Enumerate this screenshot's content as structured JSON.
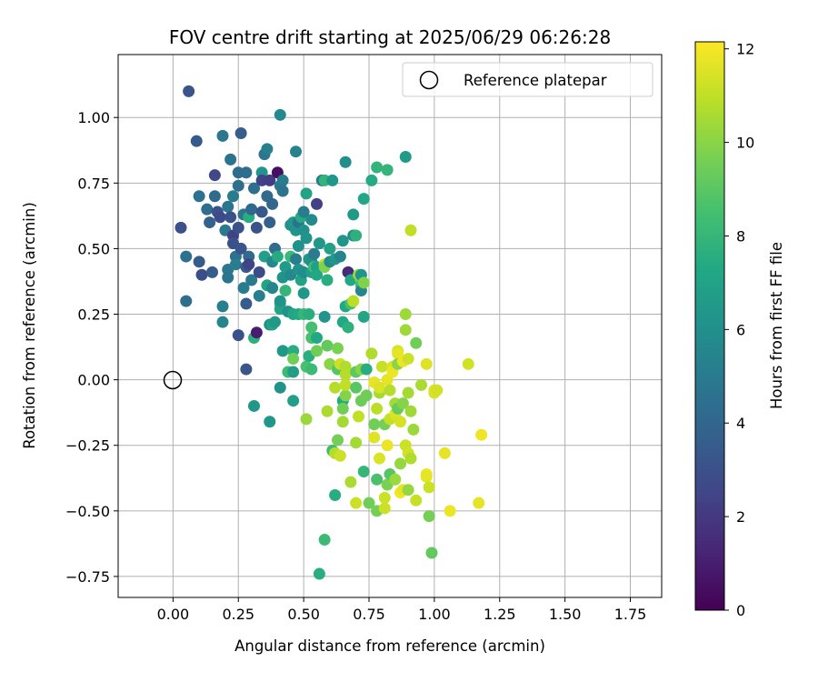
{
  "chart_data": {
    "type": "scatter",
    "title": "FOV centre drift starting at 2025/06/29 06:26:28",
    "xlabel": "Angular distance from reference (arcmin)",
    "ylabel": "Rotation from reference (arcmin)",
    "xlim": [
      -0.21,
      1.87
    ],
    "ylim": [
      -0.83,
      1.24
    ],
    "xticks": [
      0.0,
      0.25,
      0.5,
      0.75,
      1.0,
      1.25,
      1.5,
      1.75
    ],
    "xtick_labels": [
      "0.00",
      "0.25",
      "0.50",
      "0.75",
      "1.00",
      "1.25",
      "1.50",
      "1.75"
    ],
    "yticks": [
      -0.75,
      -0.5,
      -0.25,
      0.0,
      0.25,
      0.5,
      0.75,
      1.0
    ],
    "ytick_labels": [
      "−0.75",
      "−0.50",
      "−0.25",
      "0.00",
      "0.25",
      "0.50",
      "0.75",
      "1.00"
    ],
    "grid": true,
    "colorbar": {
      "label": "Hours from first FF file",
      "range": [
        0,
        12.15
      ],
      "ticks": [
        0,
        2,
        4,
        6,
        8,
        10,
        12
      ],
      "tick_labels": [
        "0",
        "2",
        "4",
        "6",
        "8",
        "10",
        "12"
      ],
      "colormap": "viridis"
    },
    "legend": {
      "position": "top-right",
      "entries": [
        {
          "label": "Reference platepar",
          "marker": "open-circle"
        }
      ]
    },
    "reference_point": {
      "x": 0.0,
      "y": 0.0
    },
    "points": [
      [
        0.06,
        1.1,
        3.2
      ],
      [
        0.03,
        0.58,
        3.0
      ],
      [
        0.05,
        0.47,
        4.5
      ],
      [
        0.05,
        0.3,
        4.4
      ],
      [
        0.09,
        0.91,
        3.4
      ],
      [
        0.1,
        0.7,
        4.5
      ],
      [
        0.1,
        0.45,
        3.5
      ],
      [
        0.11,
        0.4,
        2.9
      ],
      [
        0.13,
        0.65,
        4.3
      ],
      [
        0.14,
        0.6,
        3.8
      ],
      [
        0.15,
        0.41,
        3.5
      ],
      [
        0.16,
        0.78,
        2.6
      ],
      [
        0.16,
        0.7,
        4.2
      ],
      [
        0.17,
        0.64,
        3.1
      ],
      [
        0.18,
        0.62,
        2.8
      ],
      [
        0.19,
        0.28,
        5.2
      ],
      [
        0.19,
        0.22,
        5.5
      ],
      [
        0.19,
        0.93,
        4.8
      ],
      [
        0.2,
        0.57,
        4.9
      ],
      [
        0.21,
        0.42,
        4.8
      ],
      [
        0.21,
        0.39,
        4.7
      ],
      [
        0.21,
        0.66,
        4.7
      ],
      [
        0.22,
        0.84,
        4.6
      ],
      [
        0.22,
        0.62,
        3.0
      ],
      [
        0.23,
        0.7,
        5.0
      ],
      [
        0.23,
        0.55,
        2.4
      ],
      [
        0.23,
        0.52,
        3.0
      ],
      [
        0.24,
        0.47,
        4.5
      ],
      [
        0.24,
        0.44,
        5.1
      ],
      [
        0.25,
        0.79,
        4.3
      ],
      [
        0.25,
        0.74,
        4.4
      ],
      [
        0.25,
        0.58,
        3.0
      ],
      [
        0.25,
        0.17,
        3.0
      ],
      [
        0.26,
        0.94,
        3.6
      ],
      [
        0.26,
        0.5,
        3.2
      ],
      [
        0.27,
        0.63,
        4.7
      ],
      [
        0.27,
        0.35,
        5.0
      ],
      [
        0.28,
        0.79,
        4.3
      ],
      [
        0.28,
        0.43,
        3.4
      ],
      [
        0.28,
        0.29,
        3.5
      ],
      [
        0.29,
        0.47,
        4.2
      ],
      [
        0.29,
        0.44,
        2.4
      ],
      [
        0.28,
        0.04,
        3.2
      ],
      [
        0.29,
        0.62,
        7.5
      ],
      [
        0.3,
        0.65,
        4.1
      ],
      [
        0.3,
        0.38,
        4.9
      ],
      [
        0.31,
        0.73,
        4.4
      ],
      [
        0.31,
        0.16,
        7.7
      ],
      [
        0.31,
        -0.1,
        6.4
      ],
      [
        0.32,
        0.18,
        1.0
      ],
      [
        0.32,
        0.58,
        3.1
      ],
      [
        0.33,
        0.41,
        2.8
      ],
      [
        0.33,
        0.32,
        5.2
      ],
      [
        0.34,
        0.79,
        6.3
      ],
      [
        0.34,
        0.76,
        2.4
      ],
      [
        0.34,
        0.64,
        3.3
      ],
      [
        0.35,
        0.47,
        6.8
      ],
      [
        0.35,
        0.86,
        4.7
      ],
      [
        0.36,
        0.88,
        5.2
      ],
      [
        0.36,
        0.7,
        4.2
      ],
      [
        0.36,
        0.36,
        7.0
      ],
      [
        0.37,
        0.21,
        6.0
      ],
      [
        0.37,
        0.76,
        2.2
      ],
      [
        0.37,
        0.6,
        3.7
      ],
      [
        0.38,
        0.67,
        4.0
      ],
      [
        0.38,
        0.45,
        5.6
      ],
      [
        0.38,
        0.35,
        5.6
      ],
      [
        0.38,
        0.21,
        7.1
      ],
      [
        0.37,
        -0.16,
        6.4
      ],
      [
        0.39,
        0.5,
        4.3
      ],
      [
        0.39,
        0.22,
        6.5
      ],
      [
        0.4,
        0.47,
        7.4
      ],
      [
        0.4,
        0.79,
        0.5
      ],
      [
        0.41,
        1.01,
        5.7
      ],
      [
        0.41,
        0.74,
        4.9
      ],
      [
        0.41,
        0.29,
        7.6
      ],
      [
        0.41,
        0.27,
        7.0
      ],
      [
        0.41,
        0.3,
        6.2
      ],
      [
        0.41,
        -0.03,
        6.2
      ],
      [
        0.42,
        0.76,
        5.0
      ],
      [
        0.42,
        0.72,
        4.6
      ],
      [
        0.42,
        0.39,
        6.2
      ],
      [
        0.42,
        0.11,
        6.5
      ],
      [
        0.43,
        0.43,
        6.6
      ],
      [
        0.43,
        0.34,
        8.0
      ],
      [
        0.44,
        0.26,
        6.2
      ],
      [
        0.44,
        0.03,
        8.3
      ],
      [
        0.45,
        0.47,
        8.2
      ],
      [
        0.45,
        0.59,
        6.0
      ],
      [
        0.45,
        0.4,
        5.7
      ],
      [
        0.46,
        0.6,
        6.4
      ],
      [
        0.46,
        0.11,
        7.5
      ],
      [
        0.46,
        -0.08,
        6.8
      ],
      [
        0.46,
        0.08,
        9.5
      ],
      [
        0.46,
        0.03,
        6.7
      ],
      [
        0.46,
        0.25,
        7.1
      ],
      [
        0.47,
        0.87,
        5.4
      ],
      [
        0.47,
        0.57,
        6.3
      ],
      [
        0.47,
        0.46,
        5.2
      ],
      [
        0.48,
        0.51,
        6.1
      ],
      [
        0.48,
        0.42,
        6.2
      ],
      [
        0.48,
        0.25,
        7.3
      ],
      [
        0.48,
        0.6,
        4.5
      ],
      [
        0.49,
        0.38,
        7.0
      ],
      [
        0.49,
        0.62,
        7.4
      ],
      [
        0.5,
        0.33,
        6.4
      ],
      [
        0.5,
        0.64,
        5.0
      ],
      [
        0.5,
        0.57,
        6.1
      ],
      [
        0.5,
        0.41,
        5.9
      ],
      [
        0.5,
        0.25,
        8.0
      ],
      [
        0.51,
        0.71,
        7.0
      ],
      [
        0.51,
        0.05,
        8.6
      ],
      [
        0.51,
        0.54,
        6.2
      ],
      [
        0.51,
        -0.15,
        10.3
      ],
      [
        0.52,
        0.46,
        6.4
      ],
      [
        0.52,
        0.25,
        7.6
      ],
      [
        0.52,
        0.09,
        7.6
      ],
      [
        0.53,
        0.45,
        6.0
      ],
      [
        0.53,
        0.41,
        6.9
      ],
      [
        0.53,
        0.2,
        8.5
      ],
      [
        0.53,
        0.04,
        8.2
      ],
      [
        0.53,
        0.16,
        8.6
      ],
      [
        0.53,
        0.61,
        5.8
      ],
      [
        0.54,
        0.43,
        8.4
      ],
      [
        0.54,
        0.48,
        5.0
      ],
      [
        0.55,
        0.11,
        9.5
      ],
      [
        0.55,
        0.67,
        2.3
      ],
      [
        0.55,
        0.43,
        6.8
      ],
      [
        0.55,
        0.4,
        7.3
      ],
      [
        0.55,
        0.16,
        7.3
      ],
      [
        0.56,
        0.52,
        6.4
      ],
      [
        0.56,
        -0.74,
        7.6
      ],
      [
        0.57,
        0.76,
        4.9
      ],
      [
        0.58,
        0.44,
        11.0
      ],
      [
        0.58,
        0.43,
        9.8
      ],
      [
        0.58,
        0.24,
        6.3
      ],
      [
        0.58,
        0.76,
        7.9
      ],
      [
        0.58,
        -0.61,
        8.2
      ],
      [
        0.59,
        0.38,
        7.5
      ],
      [
        0.59,
        0.13,
        9.2
      ],
      [
        0.59,
        -0.12,
        10.6
      ],
      [
        0.6,
        0.5,
        6.9
      ],
      [
        0.6,
        0.45,
        5.7
      ],
      [
        0.6,
        0.06,
        10.0
      ],
      [
        0.61,
        0.76,
        6.4
      ],
      [
        0.61,
        -0.27,
        8.3
      ],
      [
        0.62,
        0.46,
        6.4
      ],
      [
        0.62,
        -0.44,
        7.5
      ],
      [
        0.62,
        -0.03,
        10.8
      ],
      [
        0.62,
        -0.28,
        10.8
      ],
      [
        0.63,
        0.12,
        9.7
      ],
      [
        0.63,
        0.04,
        8.9
      ],
      [
        0.63,
        -0.23,
        9.6
      ],
      [
        0.64,
        0.47,
        5.5
      ],
      [
        0.64,
        0.06,
        11.2
      ],
      [
        0.64,
        -0.29,
        11.2
      ],
      [
        0.65,
        0.53,
        6.3
      ],
      [
        0.65,
        -0.08,
        7.4
      ],
      [
        0.65,
        -0.16,
        10.5
      ],
      [
        0.65,
        -0.11,
        9.5
      ],
      [
        0.65,
        0.22,
        7.3
      ],
      [
        0.66,
        0.83,
        6.0
      ],
      [
        0.66,
        0.28,
        7.3
      ],
      [
        0.66,
        0.05,
        10.7
      ],
      [
        0.66,
        0.02,
        10.8
      ],
      [
        0.66,
        -0.06,
        9.9
      ],
      [
        0.66,
        -0.02,
        11.0
      ],
      [
        0.67,
        0.41,
        1.4
      ],
      [
        0.67,
        0.2,
        7.7
      ],
      [
        0.68,
        -0.39,
        10.6
      ],
      [
        0.68,
        0.29,
        8.5
      ],
      [
        0.68,
        0.38,
        7.3
      ],
      [
        0.69,
        0.63,
        6.5
      ],
      [
        0.69,
        0.55,
        5.8
      ],
      [
        0.69,
        0.3,
        10.6
      ],
      [
        0.69,
        0.3,
        10.9
      ],
      [
        0.7,
        0.55,
        7.7
      ],
      [
        0.7,
        -0.47,
        11.2
      ],
      [
        0.7,
        -0.24,
        10.5
      ],
      [
        0.7,
        0.03,
        9.1
      ],
      [
        0.7,
        -0.03,
        9.0
      ],
      [
        0.71,
        0.4,
        10.2
      ],
      [
        0.71,
        -0.14,
        11.0
      ],
      [
        0.72,
        0.38,
        9.8
      ],
      [
        0.72,
        0.36,
        8.3
      ],
      [
        0.72,
        0.4,
        6.3
      ],
      [
        0.72,
        0.34,
        5.6
      ],
      [
        0.72,
        0.04,
        10.0
      ],
      [
        0.72,
        -0.08,
        9.4
      ],
      [
        0.73,
        0.69,
        7.2
      ],
      [
        0.73,
        -0.35,
        8.0
      ],
      [
        0.73,
        0.24,
        7.1
      ],
      [
        0.73,
        0.37,
        9.8
      ],
      [
        0.74,
        -0.06,
        9.5
      ],
      [
        0.74,
        0.04,
        7.5
      ],
      [
        0.75,
        -0.47,
        9.5
      ],
      [
        0.76,
        0.76,
        7.4
      ],
      [
        0.76,
        0.1,
        10.7
      ],
      [
        0.77,
        -0.17,
        9.5
      ],
      [
        0.77,
        -0.22,
        11.6
      ],
      [
        0.77,
        -0.01,
        11.7
      ],
      [
        0.78,
        0.81,
        7.9
      ],
      [
        0.78,
        -0.11,
        10.9
      ],
      [
        0.78,
        -0.38,
        8.6
      ],
      [
        0.78,
        -0.5,
        9.6
      ],
      [
        0.79,
        -0.05,
        10.5
      ],
      [
        0.79,
        -0.03,
        11.5
      ],
      [
        0.79,
        -0.3,
        11.5
      ],
      [
        0.8,
        0.05,
        11.1
      ],
      [
        0.81,
        -0.45,
        11.2
      ],
      [
        0.81,
        -0.49,
        11.2
      ],
      [
        0.81,
        -0.17,
        9.6
      ],
      [
        0.82,
        0.8,
        7.9
      ],
      [
        0.82,
        -0.25,
        11.8
      ],
      [
        0.82,
        0.0,
        11.7
      ],
      [
        0.82,
        -0.4,
        9.7
      ],
      [
        0.83,
        -0.36,
        8.9
      ],
      [
        0.83,
        -0.04,
        10.8
      ],
      [
        0.83,
        -0.15,
        11.1
      ],
      [
        0.84,
        0.05,
        11.5
      ],
      [
        0.84,
        0.03,
        11.8
      ],
      [
        0.85,
        -0.09,
        10.5
      ],
      [
        0.85,
        -0.38,
        10.3
      ],
      [
        0.85,
        -0.13,
        11.5
      ],
      [
        0.86,
        0.11,
        11.4
      ],
      [
        0.86,
        0.1,
        11.7
      ],
      [
        0.86,
        0.06,
        10.0
      ],
      [
        0.86,
        -0.11,
        9.3
      ],
      [
        0.87,
        -0.16,
        11.4
      ],
      [
        0.87,
        -0.32,
        10.2
      ],
      [
        0.87,
        -0.43,
        12.0
      ],
      [
        0.88,
        -0.09,
        9.9
      ],
      [
        0.88,
        -0.42,
        11.7
      ],
      [
        0.88,
        0.07,
        11.8
      ],
      [
        0.89,
        -0.25,
        11.2
      ],
      [
        0.89,
        0.25,
        10.4
      ],
      [
        0.89,
        0.85,
        6.6
      ],
      [
        0.89,
        0.19,
        10.4
      ],
      [
        0.9,
        -0.42,
        10.2
      ],
      [
        0.9,
        0.08,
        11.2
      ],
      [
        0.9,
        -0.28,
        11.3
      ],
      [
        0.9,
        -0.05,
        10.5
      ],
      [
        0.91,
        -0.3,
        10.7
      ],
      [
        0.91,
        -0.12,
        10.4
      ],
      [
        0.91,
        0.57,
        11.0
      ],
      [
        0.92,
        -0.19,
        10.3
      ],
      [
        0.93,
        -0.46,
        11.1
      ],
      [
        0.93,
        0.14,
        9.5
      ],
      [
        0.95,
        -0.02,
        10.6
      ],
      [
        0.97,
        0.06,
        11.6
      ],
      [
        0.97,
        -0.36,
        11.8
      ],
      [
        0.97,
        -0.37,
        11.7
      ],
      [
        0.98,
        -0.52,
        9.6
      ],
      [
        0.98,
        -0.41,
        11.2
      ],
      [
        0.99,
        -0.66,
        9.2
      ],
      [
        1.0,
        -0.05,
        11.4
      ],
      [
        1.0,
        -0.04,
        11.5
      ],
      [
        1.01,
        -0.04,
        11.3
      ],
      [
        1.04,
        -0.28,
        11.7
      ],
      [
        1.06,
        -0.5,
        11.8
      ],
      [
        1.13,
        0.06,
        11.3
      ],
      [
        1.17,
        -0.47,
        11.7
      ],
      [
        1.18,
        -0.21,
        11.9
      ]
    ]
  }
}
